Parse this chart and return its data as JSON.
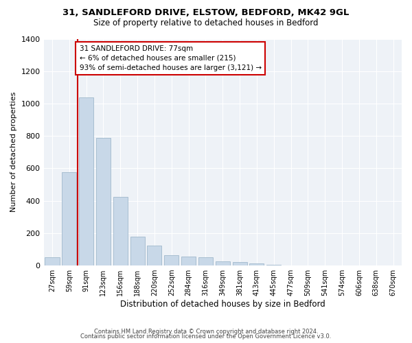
{
  "title1": "31, SANDLEFORD DRIVE, ELSTOW, BEDFORD, MK42 9GL",
  "title2": "Size of property relative to detached houses in Bedford",
  "xlabel": "Distribution of detached houses by size in Bedford",
  "ylabel": "Number of detached properties",
  "bar_labels": [
    "27sqm",
    "59sqm",
    "91sqm",
    "123sqm",
    "156sqm",
    "188sqm",
    "220sqm",
    "252sqm",
    "284sqm",
    "316sqm",
    "349sqm",
    "381sqm",
    "413sqm",
    "445sqm",
    "477sqm",
    "509sqm",
    "541sqm",
    "574sqm",
    "606sqm",
    "638sqm",
    "670sqm"
  ],
  "bar_values": [
    50,
    575,
    1040,
    790,
    425,
    180,
    125,
    65,
    55,
    50,
    25,
    20,
    15,
    5,
    0,
    0,
    0,
    0,
    0,
    0,
    0
  ],
  "bar_color": "#c8d8e8",
  "bar_edgecolor": "#a0b8cc",
  "ylim": [
    0,
    1400
  ],
  "yticks": [
    0,
    200,
    400,
    600,
    800,
    1000,
    1200,
    1400
  ],
  "vline_color": "#cc0000",
  "vline_x": 1.5,
  "annotation_box_text": "31 SANDLEFORD DRIVE: 77sqm\n← 6% of detached houses are smaller (215)\n93% of semi-detached houses are larger (3,121) →",
  "footer1": "Contains HM Land Registry data © Crown copyright and database right 2024.",
  "footer2": "Contains public sector information licensed under the Open Government Licence v3.0.",
  "background_color": "#ffffff",
  "plot_bg_color": "#eef2f7",
  "grid_color": "#ffffff"
}
